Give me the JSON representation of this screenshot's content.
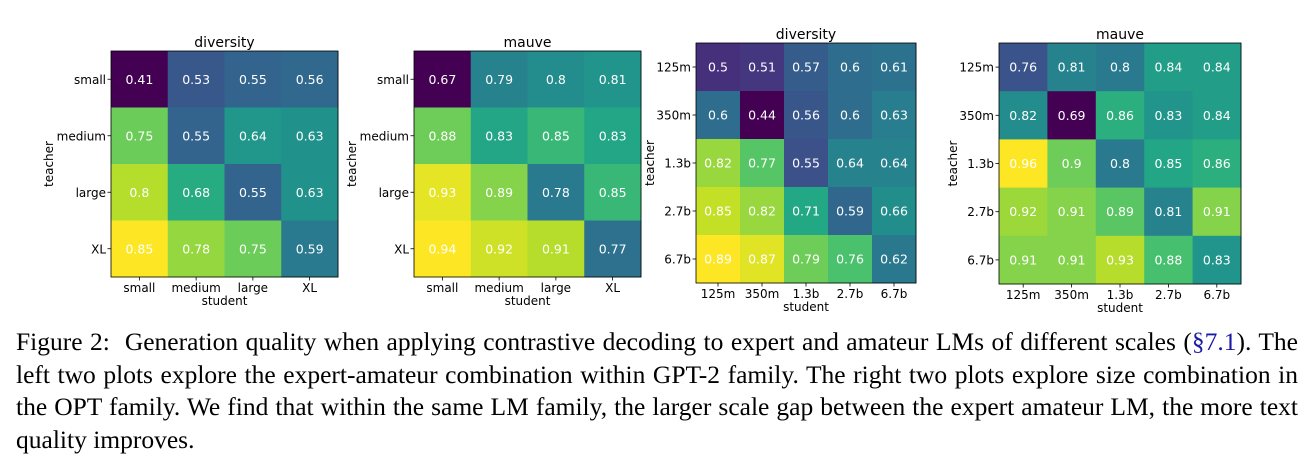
{
  "chart_data": [
    {
      "type": "heatmap",
      "title": "diversity",
      "family": "GPT-2",
      "xlabel": "student",
      "ylabel": "teacher",
      "x": [
        "small",
        "medium",
        "large",
        "XL"
      ],
      "y": [
        "small",
        "medium",
        "large",
        "XL"
      ],
      "values": [
        [
          0.41,
          0.53,
          0.55,
          0.56
        ],
        [
          0.75,
          0.55,
          0.64,
          0.63
        ],
        [
          0.8,
          0.68,
          0.55,
          0.63
        ],
        [
          0.85,
          0.78,
          0.75,
          0.59
        ]
      ],
      "colormap": "viridis"
    },
    {
      "type": "heatmap",
      "title": "mauve",
      "family": "GPT-2",
      "xlabel": "student",
      "ylabel": "teacher",
      "x": [
        "small",
        "medium",
        "large",
        "XL"
      ],
      "y": [
        "small",
        "medium",
        "large",
        "XL"
      ],
      "values": [
        [
          0.67,
          0.79,
          0.8,
          0.81
        ],
        [
          0.88,
          0.83,
          0.85,
          0.83
        ],
        [
          0.93,
          0.89,
          0.78,
          0.85
        ],
        [
          0.94,
          0.92,
          0.91,
          0.77
        ]
      ],
      "colormap": "viridis"
    },
    {
      "type": "heatmap",
      "title": "diversity",
      "family": "OPT",
      "xlabel": "student",
      "ylabel": "teacher",
      "x": [
        "125m",
        "350m",
        "1.3b",
        "2.7b",
        "6.7b"
      ],
      "y": [
        "125m",
        "350m",
        "1.3b",
        "2.7b",
        "6.7b"
      ],
      "values": [
        [
          0.5,
          0.51,
          0.57,
          0.6,
          0.61
        ],
        [
          0.6,
          0.44,
          0.56,
          0.6,
          0.63
        ],
        [
          0.82,
          0.77,
          0.55,
          0.64,
          0.64
        ],
        [
          0.85,
          0.82,
          0.71,
          0.59,
          0.66
        ],
        [
          0.89,
          0.87,
          0.79,
          0.76,
          0.62
        ]
      ],
      "colormap": "viridis"
    },
    {
      "type": "heatmap",
      "title": "mauve",
      "family": "OPT",
      "xlabel": "student",
      "ylabel": "teacher",
      "x": [
        "125m",
        "350m",
        "1.3b",
        "2.7b",
        "6.7b"
      ],
      "y": [
        "125m",
        "350m",
        "1.3b",
        "2.7b",
        "6.7b"
      ],
      "values": [
        [
          0.76,
          0.81,
          0.8,
          0.84,
          0.84
        ],
        [
          0.82,
          0.69,
          0.86,
          0.83,
          0.84
        ],
        [
          0.96,
          0.9,
          0.8,
          0.85,
          0.86
        ],
        [
          0.92,
          0.91,
          0.89,
          0.81,
          0.91
        ],
        [
          0.91,
          0.91,
          0.93,
          0.88,
          0.83
        ]
      ],
      "colormap": "viridis"
    }
  ],
  "caption": {
    "label": "Figure 2:",
    "text_before_link": "Generation quality when applying contrastive decoding to expert and amateur LMs of different scales (",
    "link": "§7.1",
    "text_after_link": "). The left two plots explore the expert-amateur combination within GPT-2 family. The right two plots explore size combination in the OPT family.  We find that within the same LM family, the larger scale gap between the expert amateur LM, the more text quality improves."
  }
}
